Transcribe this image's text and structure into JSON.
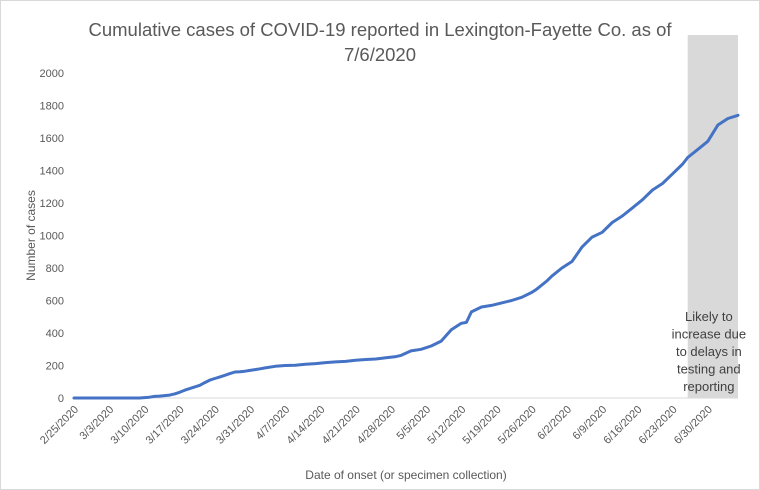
{
  "chart_data": {
    "type": "line",
    "title_lines": [
      "Cumulative cases of COVID-19 reported in Lexington-Fayette Co.  as of",
      "7/6/2020"
    ],
    "xlabel": "Date of onset (or specimen collection)",
    "ylabel": "Number  of cases",
    "ylim": [
      0,
      2000
    ],
    "yticks": [
      0,
      200,
      400,
      600,
      800,
      1000,
      1200,
      1400,
      1600,
      1800,
      2000
    ],
    "x_tick_labels": [
      "2/25/2020",
      "3/3/2020",
      "3/10/2020",
      "3/17/2020",
      "3/24/2020",
      "3/31/2020",
      "4/7/2020",
      "4/14/2020",
      "4/21/2020",
      "4/28/2020",
      "5/5/2020",
      "5/12/2020",
      "5/19/2020",
      "5/26/2020",
      "6/2/2020",
      "6/9/2020",
      "6/16/2020",
      "6/23/2020",
      "6/30/2020"
    ],
    "x_start": "2/25/2020",
    "x_end": "7/6/2020",
    "grid": false,
    "legend": "none",
    "line_color": "#4472c4",
    "shade_color": "#d9d9d9",
    "shaded_region": {
      "start": "6/26/2020",
      "end": "7/6/2020",
      "annotation_lines": [
        "Likely to",
        "increase due",
        "to delays in",
        "testing and",
        "reporting"
      ]
    },
    "series": [
      {
        "x": [
          "2/25/2020",
          "2/27/2020",
          "3/1/2020",
          "3/4/2020",
          "3/7/2020",
          "3/9/2020",
          "3/11/2020",
          "3/12/2020",
          "3/13/2020",
          "3/14/2020",
          "3/15/2020",
          "3/16/2020",
          "3/17/2020",
          "3/18/2020",
          "3/19/2020",
          "3/20/2020",
          "3/21/2020",
          "3/22/2020",
          "3/23/2020",
          "3/24/2020",
          "3/25/2020",
          "3/26/2020",
          "3/27/2020",
          "3/28/2020",
          "3/29/2020",
          "3/30/2020",
          "3/31/2020",
          "4/1/2020",
          "4/2/2020",
          "4/3/2020",
          "4/5/2020",
          "4/7/2020",
          "4/9/2020",
          "4/11/2020",
          "4/13/2020",
          "4/15/2020",
          "4/17/2020",
          "4/19/2020",
          "4/21/2020",
          "4/23/2020",
          "4/25/2020",
          "4/27/2020",
          "4/29/2020",
          "4/30/2020",
          "5/2/2020",
          "5/4/2020",
          "5/6/2020",
          "5/8/2020",
          "5/10/2020",
          "5/12/2020",
          "5/13/2020",
          "5/14/2020",
          "5/16/2020",
          "5/18/2020",
          "5/20/2020",
          "5/22/2020",
          "5/24/2020",
          "5/26/2020",
          "5/27/2020",
          "5/29/2020",
          "5/30/2020",
          "6/1/2020",
          "6/3/2020",
          "6/5/2020",
          "6/7/2020",
          "6/9/2020",
          "6/11/2020",
          "6/13/2020",
          "6/15/2020",
          "6/17/2020",
          "6/19/2020",
          "6/21/2020",
          "6/23/2020",
          "6/25/2020",
          "6/26/2020",
          "6/28/2020",
          "6/30/2020",
          "7/2/2020",
          "7/4/2020",
          "7/6/2020"
        ],
        "y": [
          0,
          0,
          0,
          0,
          0,
          0,
          5,
          10,
          12,
          15,
          18,
          25,
          35,
          48,
          58,
          68,
          78,
          95,
          110,
          120,
          130,
          140,
          150,
          160,
          162,
          165,
          170,
          175,
          180,
          185,
          195,
          200,
          202,
          208,
          212,
          218,
          222,
          225,
          232,
          237,
          240,
          248,
          255,
          262,
          290,
          300,
          320,
          350,
          420,
          460,
          465,
          530,
          560,
          570,
          585,
          600,
          620,
          650,
          670,
          720,
          750,
          800,
          840,
          930,
          990,
          1020,
          1080,
          1120,
          1170,
          1220,
          1280,
          1320,
          1380,
          1440,
          1480,
          1530,
          1580,
          1680,
          1720,
          1740
        ]
      }
    ]
  }
}
